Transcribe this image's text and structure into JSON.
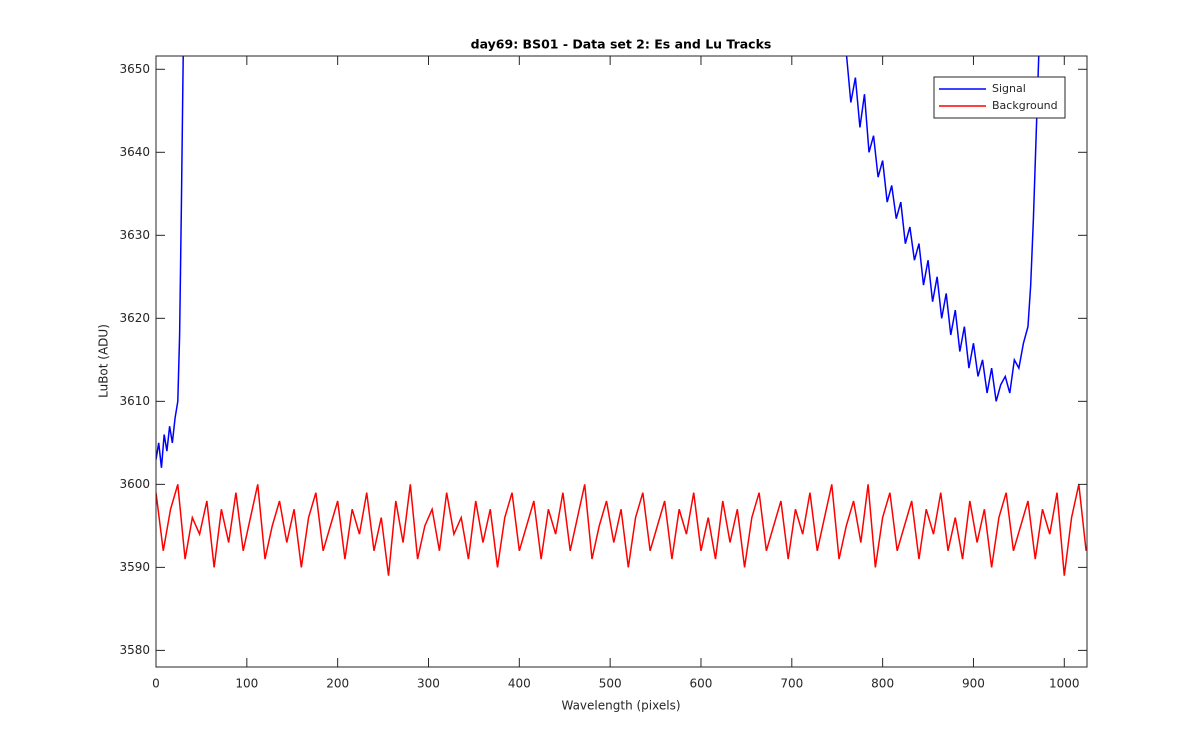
{
  "chart_data": {
    "type": "line",
    "title": "day69: BS01 - Data set 2: Es and Lu Tracks",
    "xlabel": "Wavelength (pixels)",
    "ylabel": "LuBot (ADU)",
    "xlim": [
      0,
      1025
    ],
    "ylim": [
      3578,
      3651.6
    ],
    "xticks": [
      0,
      100,
      200,
      300,
      400,
      500,
      600,
      700,
      800,
      900,
      1000
    ],
    "yticks": [
      3580,
      3590,
      3600,
      3610,
      3620,
      3630,
      3640,
      3650
    ],
    "legend": "northeast",
    "series": [
      {
        "name": "Signal",
        "color": "#0000ff",
        "x": [
          0,
          3,
          6,
          9,
          12,
          15,
          18,
          21,
          24,
          26,
          28,
          30,
          400,
          760,
          765,
          770,
          775,
          780,
          785,
          790,
          795,
          800,
          805,
          810,
          815,
          820,
          825,
          830,
          835,
          840,
          845,
          850,
          855,
          860,
          865,
          870,
          875,
          880,
          885,
          890,
          895,
          900,
          905,
          910,
          915,
          920,
          925,
          930,
          935,
          940,
          945,
          950,
          955,
          960,
          963,
          966,
          969,
          972
        ],
        "values": [
          3603,
          3605,
          3602,
          3606,
          3604,
          3607,
          3605,
          3608,
          3610,
          3618,
          3634,
          3652,
          null,
          3652,
          3646,
          3649,
          3643,
          3647,
          3640,
          3642,
          3637,
          3639,
          3634,
          3636,
          3632,
          3634,
          3629,
          3631,
          3627,
          3629,
          3624,
          3627,
          3622,
          3625,
          3620,
          3623,
          3618,
          3621,
          3616,
          3619,
          3614,
          3617,
          3613,
          3615,
          3611,
          3614,
          3610,
          3612,
          3613,
          3611,
          3615,
          3614,
          3617,
          3619,
          3624,
          3632,
          3642,
          3652
        ]
      },
      {
        "name": "Background",
        "color": "#ff0000",
        "x": [
          0,
          8,
          16,
          24,
          32,
          40,
          48,
          56,
          64,
          72,
          80,
          88,
          96,
          104,
          112,
          120,
          128,
          136,
          144,
          152,
          160,
          168,
          176,
          184,
          192,
          200,
          208,
          216,
          224,
          232,
          240,
          248,
          256,
          264,
          272,
          280,
          288,
          296,
          304,
          312,
          320,
          328,
          336,
          344,
          352,
          360,
          368,
          376,
          384,
          392,
          400,
          408,
          416,
          424,
          432,
          440,
          448,
          456,
          464,
          472,
          480,
          488,
          496,
          504,
          512,
          520,
          528,
          536,
          544,
          552,
          560,
          568,
          576,
          584,
          592,
          600,
          608,
          616,
          624,
          632,
          640,
          648,
          656,
          664,
          672,
          680,
          688,
          696,
          704,
          712,
          720,
          728,
          736,
          744,
          752,
          760,
          768,
          776,
          784,
          792,
          800,
          808,
          816,
          824,
          832,
          840,
          848,
          856,
          864,
          872,
          880,
          888,
          896,
          904,
          912,
          920,
          928,
          936,
          944,
          952,
          960,
          968,
          976,
          984,
          992,
          1000,
          1008,
          1016,
          1024
        ],
        "values": [
          3599,
          3592,
          3597,
          3600,
          3591,
          3596,
          3594,
          3598,
          3590,
          3597,
          3593,
          3599,
          3592,
          3596,
          3600,
          3591,
          3595,
          3598,
          3593,
          3597,
          3590,
          3596,
          3599,
          3592,
          3595,
          3598,
          3591,
          3597,
          3594,
          3599,
          3592,
          3596,
          3589,
          3598,
          3593,
          3600,
          3591,
          3595,
          3597,
          3592,
          3599,
          3594,
          3596,
          3591,
          3598,
          3593,
          3597,
          3590,
          3596,
          3599,
          3592,
          3595,
          3598,
          3591,
          3597,
          3594,
          3599,
          3592,
          3596,
          3600,
          3591,
          3595,
          3598,
          3593,
          3597,
          3590,
          3596,
          3599,
          3592,
          3595,
          3598,
          3591,
          3597,
          3594,
          3599,
          3592,
          3596,
          3591,
          3598,
          3593,
          3597,
          3590,
          3596,
          3599,
          3592,
          3595,
          3598,
          3591,
          3597,
          3594,
          3599,
          3592,
          3596,
          3600,
          3591,
          3595,
          3598,
          3593,
          3600,
          3590,
          3596,
          3599,
          3592,
          3595,
          3598,
          3591,
          3597,
          3594,
          3599,
          3592,
          3596,
          3591,
          3598,
          3593,
          3597,
          3590,
          3596,
          3599,
          3592,
          3595,
          3598,
          3591,
          3597,
          3594,
          3599,
          3589,
          3596,
          3600,
          3592
        ]
      }
    ]
  }
}
